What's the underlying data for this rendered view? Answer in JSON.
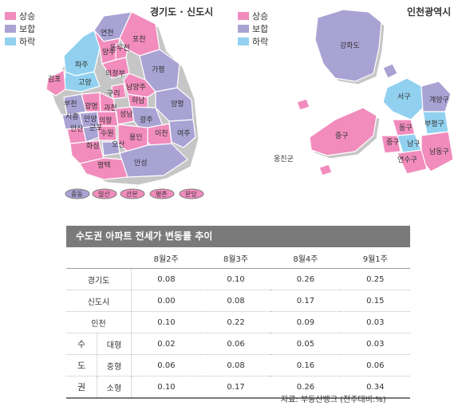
{
  "colors": {
    "rise": "#f18cbd",
    "flat": "#a9a3d4",
    "fall": "#91d1ef"
  },
  "legend": [
    {
      "label": "상승",
      "color": "#f18cbd"
    },
    {
      "label": "보합",
      "color": "#a9a3d4"
    },
    {
      "label": "하락",
      "color": "#91d1ef"
    }
  ],
  "map_left": {
    "title": "경기도 · 신도시",
    "regions": [
      "연천",
      "포천",
      "파주",
      "양주",
      "동두천",
      "의정부",
      "가평",
      "김포",
      "고양",
      "남양주",
      "구리",
      "하남",
      "양평",
      "부천",
      "광명",
      "과천",
      "성남",
      "시흥",
      "안양",
      "의왕",
      "광주",
      "여주",
      "이천",
      "안산",
      "군포",
      "수원",
      "용인",
      "화성",
      "오산",
      "평택",
      "안성"
    ],
    "new_towns": [
      "중동",
      "일산",
      "산본",
      "평촌",
      "분당"
    ]
  },
  "map_right": {
    "title": "인천광역시",
    "regions": [
      "강화도",
      "서구",
      "계양구",
      "부평구",
      "동구",
      "중구",
      "중구",
      "남구",
      "연수구",
      "남동구",
      "옹진군"
    ]
  },
  "table": {
    "title": "수도권 아파트 전세가 변동률 추이",
    "columns": [
      "8월2주",
      "8월3주",
      "8월4주",
      "9월1주"
    ],
    "rows": [
      {
        "label": "경기도",
        "values": [
          "0.08",
          "0.10",
          "0.26",
          "0.25"
        ]
      },
      {
        "label": "신도시",
        "values": [
          "0.00",
          "0.08",
          "0.17",
          "0.15"
        ]
      },
      {
        "label": "인천",
        "values": [
          "0.10",
          "0.22",
          "0.09",
          "0.03"
        ]
      }
    ],
    "group_label": [
      "수",
      "도",
      "권"
    ],
    "subrows": [
      {
        "label": "대형",
        "values": [
          "0.02",
          "0.06",
          "0.05",
          "0.03"
        ]
      },
      {
        "label": "중형",
        "values": [
          "0.06",
          "0.08",
          "0.16",
          "0.06"
        ]
      },
      {
        "label": "소형",
        "values": [
          "0.10",
          "0.17",
          "0.26",
          "0.34"
        ]
      }
    ]
  },
  "source": "자료: 부동산뱅크 (전주대비:%)"
}
